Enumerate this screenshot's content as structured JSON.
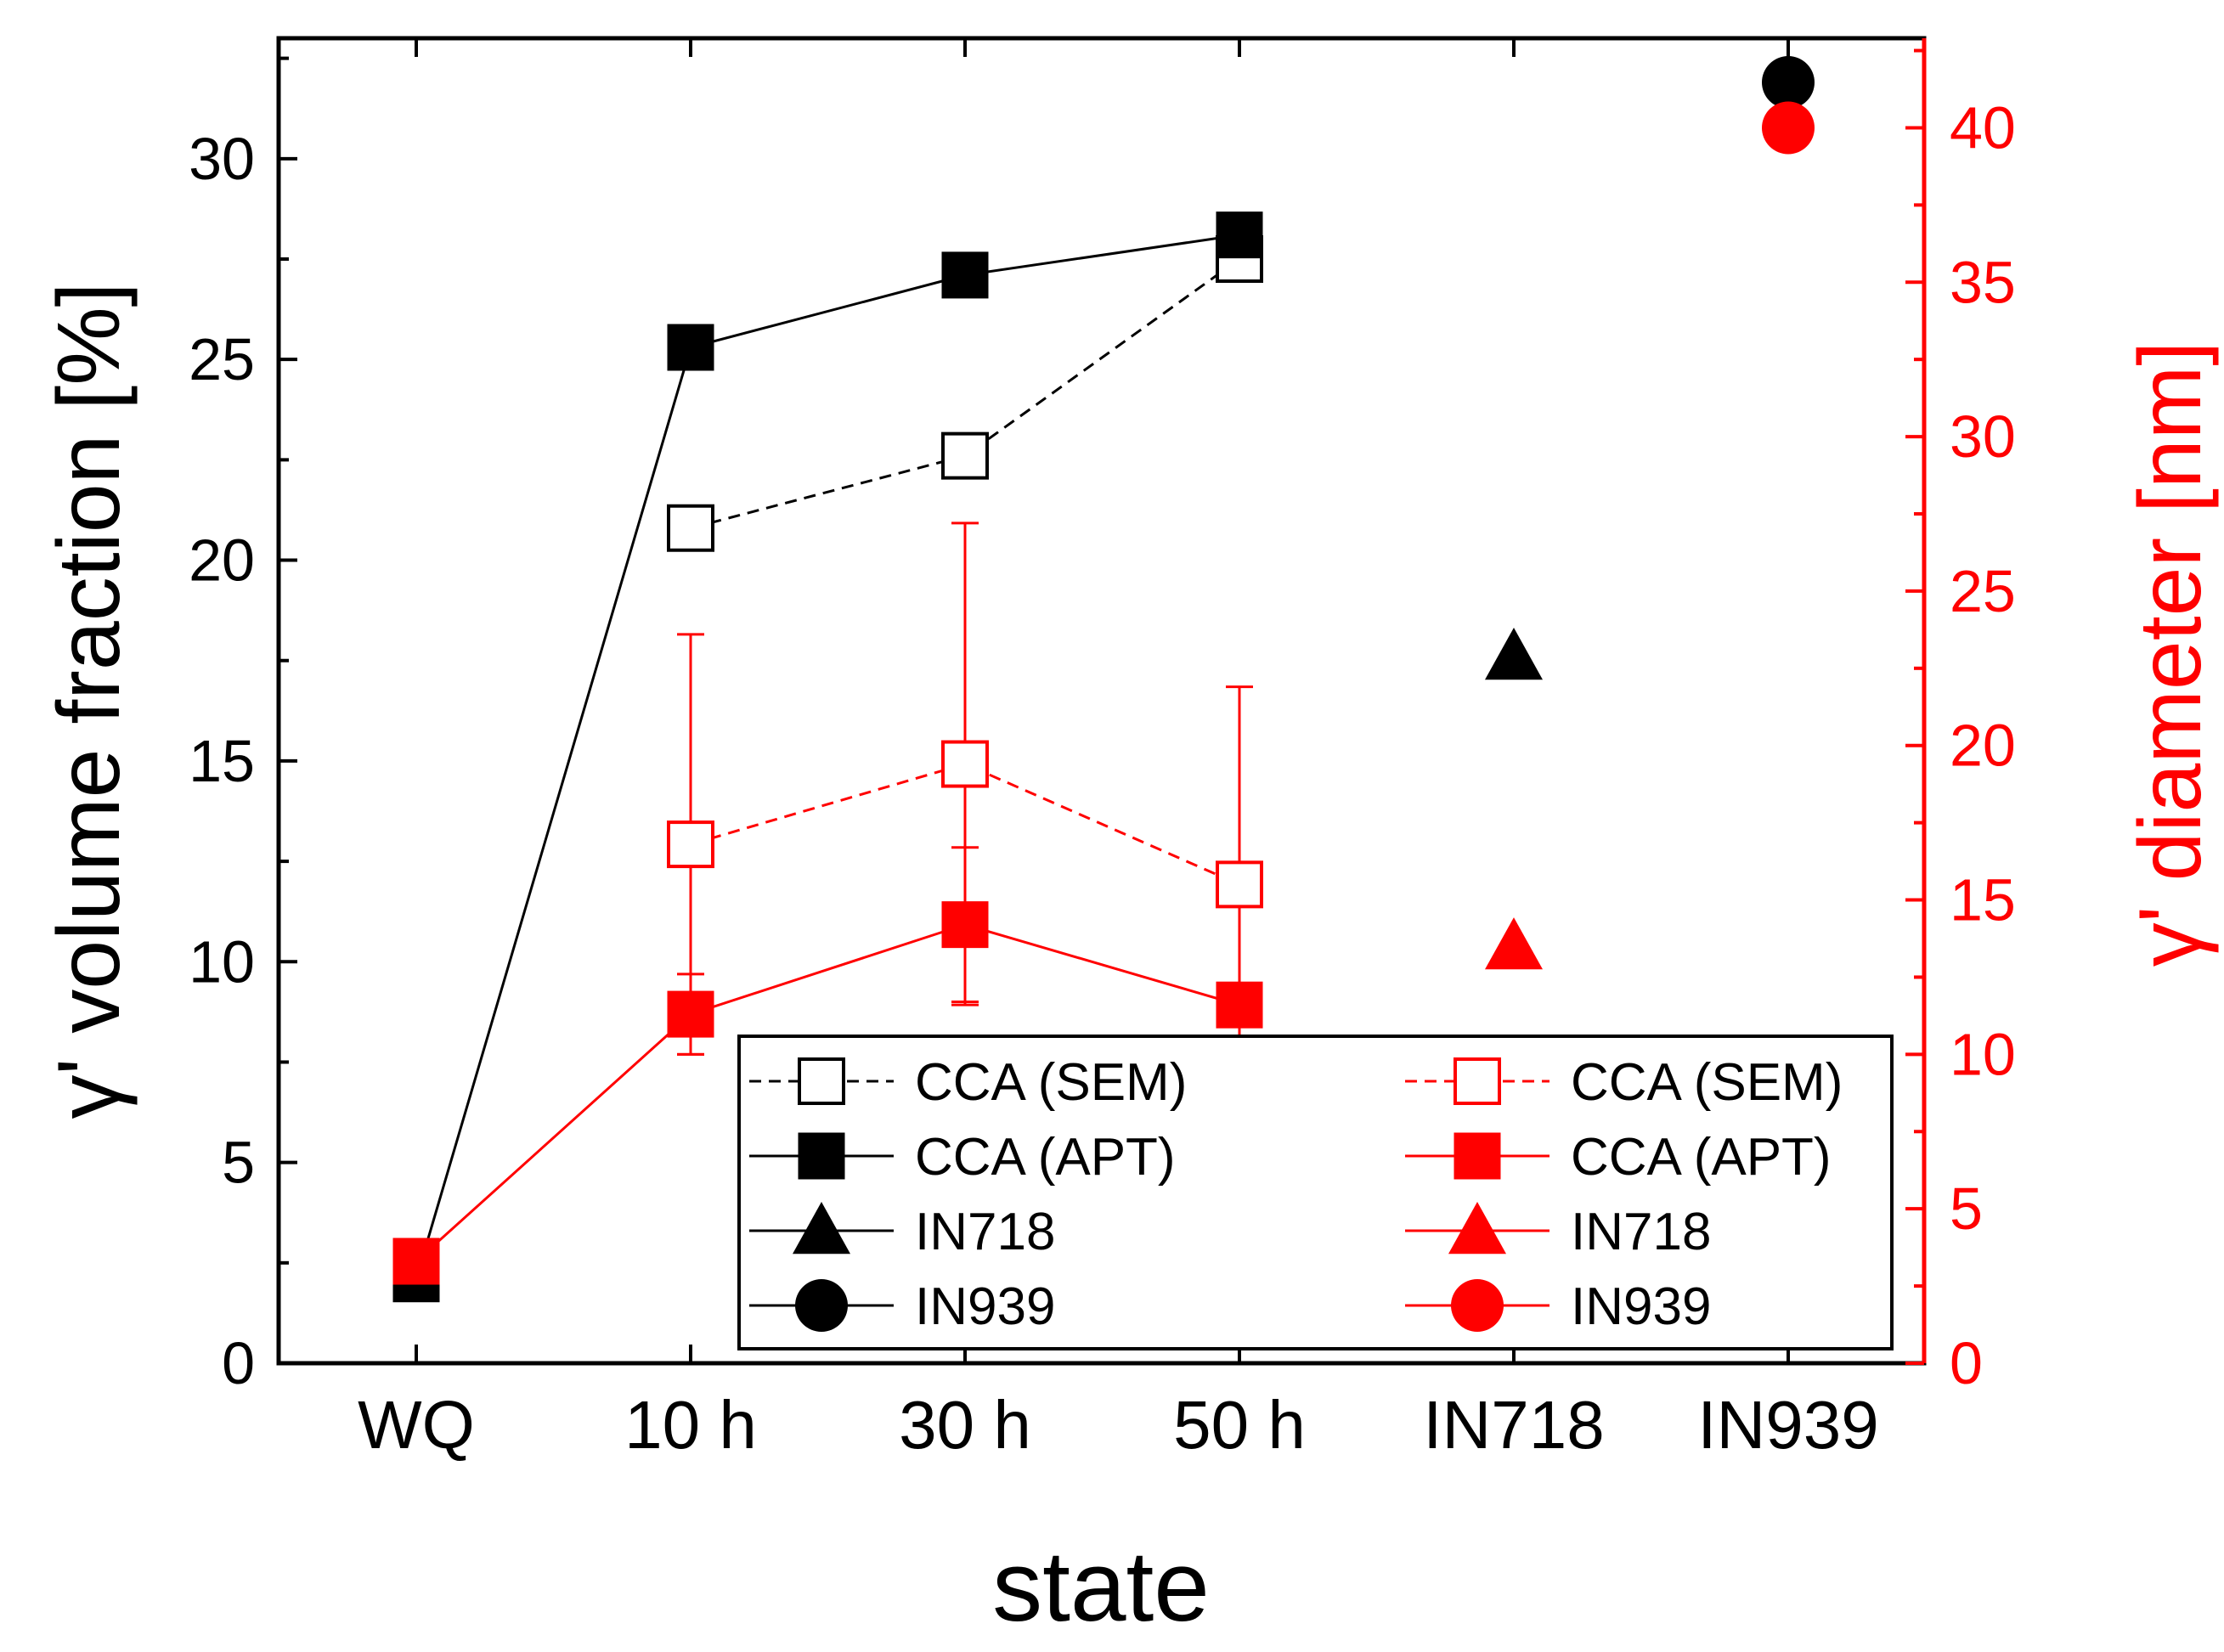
{
  "chart_data": {
    "type": "scatter",
    "xlabel": "state",
    "categories": [
      "WQ",
      "10 h",
      "30 h",
      "50 h",
      "IN718",
      "IN939"
    ],
    "y_left": {
      "label": "γ' volume fraction [%]",
      "range": [
        0,
        33
      ],
      "ticks": [
        0,
        5,
        10,
        15,
        20,
        25,
        30
      ],
      "color": "#000000"
    },
    "y_right": {
      "label": "γ' diameter [nm]",
      "range": [
        0,
        42.9
      ],
      "ticks": [
        0,
        5,
        10,
        15,
        20,
        25,
        30,
        35,
        40
      ],
      "color": "#ff0000"
    },
    "series": [
      {
        "name": "CCA (SEM)",
        "axis": "left",
        "color": "#000000",
        "marker": "square-open",
        "line": "dashed",
        "points": [
          {
            "x": "10 h",
            "y": 20.8,
            "err": 0.4
          },
          {
            "x": "30 h",
            "y": 22.6,
            "err": 0.3
          },
          {
            "x": "50 h",
            "y": 27.5,
            "err": 0.2
          }
        ]
      },
      {
        "name": "CCA (APT)",
        "axis": "left",
        "color": "#000000",
        "marker": "square-filled",
        "line": "solid",
        "points": [
          {
            "x": "WQ",
            "y": 2.1
          },
          {
            "x": "10 h",
            "y": 25.3
          },
          {
            "x": "30 h",
            "y": 27.1
          },
          {
            "x": "50 h",
            "y": 28.1
          }
        ]
      },
      {
        "name": "IN718",
        "axis": "left",
        "color": "#000000",
        "marker": "triangle-filled",
        "line": "none",
        "points": [
          {
            "x": "IN718",
            "y": 17.6
          }
        ]
      },
      {
        "name": "IN939",
        "axis": "left",
        "color": "#000000",
        "marker": "circle-filled",
        "line": "none",
        "points": [
          {
            "x": "IN939",
            "y": 31.9
          }
        ]
      },
      {
        "name": "CCA (SEM)",
        "axis": "right",
        "color": "#ff0000",
        "marker": "square-open",
        "line": "dashed",
        "points": [
          {
            "x": "10 h",
            "y": 16.8,
            "err": 6.8
          },
          {
            "x": "30 h",
            "y": 19.4,
            "err": 7.8
          },
          {
            "x": "50 h",
            "y": 15.5,
            "err": 6.4
          }
        ]
      },
      {
        "name": "CCA (APT)",
        "axis": "right",
        "color": "#ff0000",
        "marker": "square-filled",
        "line": "solid",
        "points": [
          {
            "x": "WQ",
            "y": 3.3
          },
          {
            "x": "10 h",
            "y": 11.3,
            "err": 1.3
          },
          {
            "x": "30 h",
            "y": 14.2,
            "err": 2.5
          },
          {
            "x": "50 h",
            "y": 11.6
          }
        ]
      },
      {
        "name": "IN718",
        "axis": "right",
        "color": "#ff0000",
        "marker": "triangle-filled",
        "line": "none",
        "points": [
          {
            "x": "IN718",
            "y": 13.5
          }
        ]
      },
      {
        "name": "IN939",
        "axis": "right",
        "color": "#ff0000",
        "marker": "circle-filled",
        "line": "none",
        "points": [
          {
            "x": "IN939",
            "y": 40.0
          }
        ]
      }
    ],
    "legend": {
      "position": "bottom-right",
      "columns": 2,
      "entries": [
        {
          "label": "CCA (SEM)",
          "color": "#000000",
          "marker": "square-open",
          "line": "dashed"
        },
        {
          "label": "CCA (SEM)",
          "color": "#ff0000",
          "marker": "square-open",
          "line": "dashed"
        },
        {
          "label": "CCA (APT)",
          "color": "#000000",
          "marker": "square-filled",
          "line": "solid"
        },
        {
          "label": "CCA (APT)",
          "color": "#ff0000",
          "marker": "square-filled",
          "line": "solid"
        },
        {
          "label": "IN718",
          "color": "#000000",
          "marker": "triangle-filled",
          "line": "solid"
        },
        {
          "label": "IN718",
          "color": "#ff0000",
          "marker": "triangle-filled",
          "line": "solid"
        },
        {
          "label": "IN939",
          "color": "#000000",
          "marker": "circle-filled",
          "line": "solid"
        },
        {
          "label": "IN939",
          "color": "#ff0000",
          "marker": "circle-filled",
          "line": "solid"
        }
      ]
    }
  }
}
